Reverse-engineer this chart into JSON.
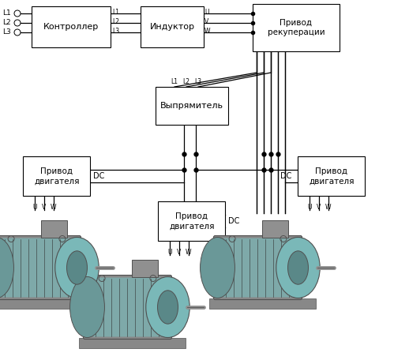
{
  "bg_color": "#ffffff",
  "box_facecolor": "#ffffff",
  "line_color": "#000000",
  "text_color": "#000000",
  "motor_teal": "#7ab8b8",
  "motor_gray": "#909090",
  "motor_dark": "#505050",
  "motor_mid": "#b0b0b0",
  "figsize": [
    4.99,
    4.61
  ],
  "dpi": 100,
  "labels": {
    "controller": "Контроллер",
    "inductor": "Индуктор",
    "regen": "Привод\nрекуперации",
    "rectifier": "Выпрямитель",
    "drive": "Привод\nдвигателя",
    "dc": "DC"
  },
  "L_labels": [
    "L1",
    "L2",
    "L3"
  ],
  "UVW_labels": [
    "U",
    "V",
    "W"
  ]
}
